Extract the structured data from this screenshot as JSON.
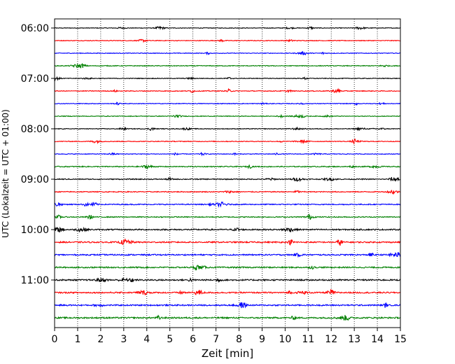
{
  "chart_data": {
    "type": "line",
    "title": "",
    "xlabel": "Zeit  [min]",
    "ylabel": "UTC (Lokalzeit = UTC + 01:00)",
    "xlim": [
      0,
      15
    ],
    "x_ticks": [
      0,
      1,
      2,
      3,
      4,
      5,
      6,
      7,
      8,
      9,
      10,
      11,
      12,
      13,
      14,
      15
    ],
    "x_tick_labels": [
      "0",
      "1",
      "2",
      "3",
      "4",
      "5",
      "6",
      "7",
      "8",
      "9",
      "10",
      "11",
      "12",
      "13",
      "14",
      "15"
    ],
    "y_tick_labels": [
      "06:00",
      "07:00",
      "08:00",
      "09:00",
      "10:00",
      "11:00"
    ],
    "grid": "vertical dotted",
    "trace_interval_minutes": 15,
    "traces": [
      {
        "start": "06:00",
        "color": "#000000",
        "amplitude": 0.2
      },
      {
        "start": "06:15",
        "color": "#ff0000",
        "amplitude": 0.22
      },
      {
        "start": "06:30",
        "color": "#0000ff",
        "amplitude": 0.22
      },
      {
        "start": "06:45",
        "color": "#008000",
        "amplitude": 0.24
      },
      {
        "start": "07:00",
        "color": "#000000",
        "amplitude": 0.22
      },
      {
        "start": "07:15",
        "color": "#ff0000",
        "amplitude": 0.24
      },
      {
        "start": "07:30",
        "color": "#0000ff",
        "amplitude": 0.22
      },
      {
        "start": "07:45",
        "color": "#008000",
        "amplitude": 0.22
      },
      {
        "start": "08:00",
        "color": "#000000",
        "amplitude": 0.22
      },
      {
        "start": "08:15",
        "color": "#ff0000",
        "amplitude": 0.24
      },
      {
        "start": "08:30",
        "color": "#0000ff",
        "amplitude": 0.22
      },
      {
        "start": "08:45",
        "color": "#008000",
        "amplitude": 0.3
      },
      {
        "start": "09:00",
        "color": "#000000",
        "amplitude": 0.3
      },
      {
        "start": "09:15",
        "color": "#ff0000",
        "amplitude": 0.28
      },
      {
        "start": "09:30",
        "color": "#0000ff",
        "amplitude": 0.32
      },
      {
        "start": "09:45",
        "color": "#008000",
        "amplitude": 0.3
      },
      {
        "start": "10:00",
        "color": "#000000",
        "amplitude": 0.4
      },
      {
        "start": "10:15",
        "color": "#ff0000",
        "amplitude": 0.42
      },
      {
        "start": "10:30",
        "color": "#0000ff",
        "amplitude": 0.4
      },
      {
        "start": "10:45",
        "color": "#008000",
        "amplitude": 0.42
      },
      {
        "start": "11:00",
        "color": "#000000",
        "amplitude": 0.44
      },
      {
        "start": "11:15",
        "color": "#ff0000",
        "amplitude": 0.42
      },
      {
        "start": "11:30",
        "color": "#0000ff",
        "amplitude": 0.42
      },
      {
        "start": "11:45",
        "color": "#008000",
        "amplitude": 0.44
      }
    ]
  }
}
